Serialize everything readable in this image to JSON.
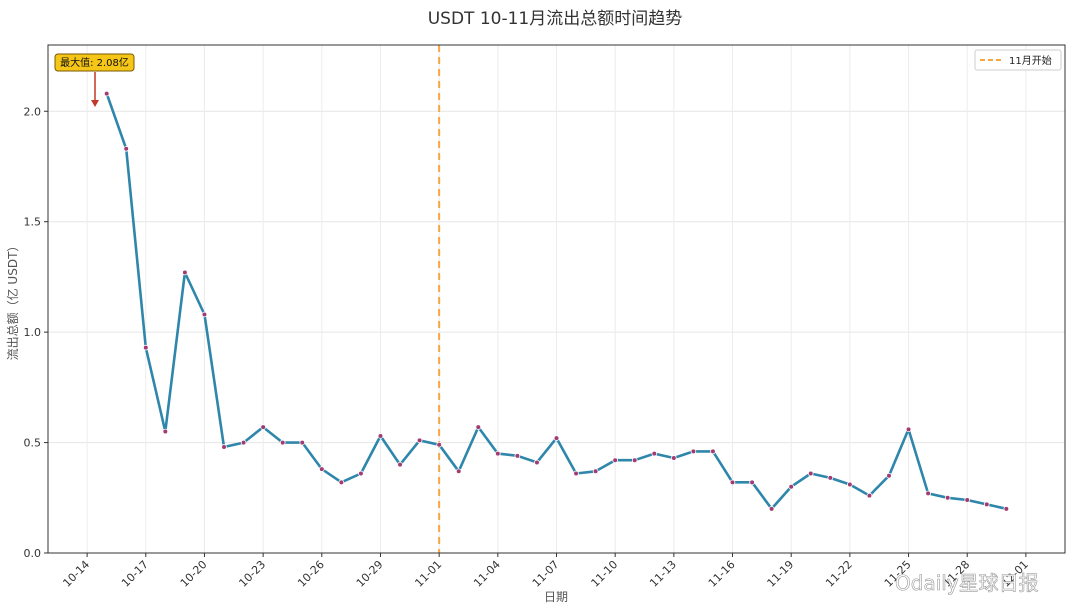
{
  "chart_data": {
    "type": "line",
    "title": "USDT 10-11月流出总额时间趋势",
    "xlabel": "日期",
    "ylabel": "流出总额（亿 USDT）",
    "ylim": [
      0,
      2.3
    ],
    "y_ticks": [
      0.0,
      0.5,
      1.0,
      1.5,
      2.0
    ],
    "y_tick_labels": [
      "0.0",
      "0.5",
      "1.0",
      "1.5",
      "2.0"
    ],
    "x_ticks": [
      "2025-10-14",
      "2025-10-17",
      "2025-10-20",
      "2025-10-23",
      "2025-10-26",
      "2025-10-29",
      "2025-11-01",
      "2025-11-04",
      "2025-11-07",
      "2025-11-10",
      "2025-11-13",
      "2025-11-16",
      "2025-11-19",
      "2025-11-22",
      "2025-11-25",
      "2025-11-28",
      "2025-12-01"
    ],
    "x_tick_labels": [
      "10-14",
      "10-17",
      "10-20",
      "10-23",
      "10-26",
      "10-29",
      "11-01",
      "11-04",
      "11-07",
      "11-10",
      "11-13",
      "11-16",
      "11-19",
      "11-22",
      "11-25",
      "11-28",
      "12-01"
    ],
    "grid": true,
    "legend_placement": "top-right",
    "series": [
      {
        "color": "#2e86ab",
        "x": [
          "2025-10-15",
          "2025-10-16",
          "2025-10-17",
          "2025-10-18",
          "2025-10-19",
          "2025-10-20",
          "2025-10-21",
          "2025-10-22",
          "2025-10-23",
          "2025-10-24",
          "2025-10-25",
          "2025-10-26",
          "2025-10-27",
          "2025-10-28",
          "2025-10-29",
          "2025-10-30",
          "2025-10-31",
          "2025-11-01",
          "2025-11-02",
          "2025-11-03",
          "2025-11-04",
          "2025-11-05",
          "2025-11-06",
          "2025-11-07",
          "2025-11-08",
          "2025-11-09",
          "2025-11-10",
          "2025-11-11",
          "2025-11-12",
          "2025-11-13",
          "2025-11-14",
          "2025-11-15",
          "2025-11-16",
          "2025-11-17",
          "2025-11-18",
          "2025-11-19",
          "2025-11-20",
          "2025-11-21",
          "2025-11-22",
          "2025-11-23",
          "2025-11-24",
          "2025-11-25",
          "2025-11-26",
          "2025-11-27",
          "2025-11-28",
          "2025-11-29",
          "2025-11-30"
        ],
        "values": [
          2.08,
          1.83,
          0.93,
          0.55,
          1.27,
          1.08,
          0.48,
          0.5,
          0.57,
          0.5,
          0.5,
          0.38,
          0.32,
          0.36,
          0.53,
          0.4,
          0.51,
          0.49,
          0.37,
          0.57,
          0.45,
          0.44,
          0.41,
          0.52,
          0.36,
          0.37,
          0.42,
          0.42,
          0.45,
          0.43,
          0.46,
          0.46,
          0.32,
          0.32,
          0.2,
          0.3,
          0.36,
          0.34,
          0.31,
          0.26,
          0.35,
          0.56,
          0.27,
          0.25,
          0.24,
          0.22,
          0.2
        ]
      }
    ],
    "reference_line": {
      "x": "2025-11-01",
      "label": "11月开始",
      "color": "#f5a742",
      "style": "dashed"
    },
    "annotation": {
      "text": "最大值: 2.08亿",
      "x": "2025-10-15",
      "y": 2.08,
      "box_color": "#f5c518",
      "arrow_color": "#c0392b"
    },
    "watermark": "Odaily星球日报"
  }
}
